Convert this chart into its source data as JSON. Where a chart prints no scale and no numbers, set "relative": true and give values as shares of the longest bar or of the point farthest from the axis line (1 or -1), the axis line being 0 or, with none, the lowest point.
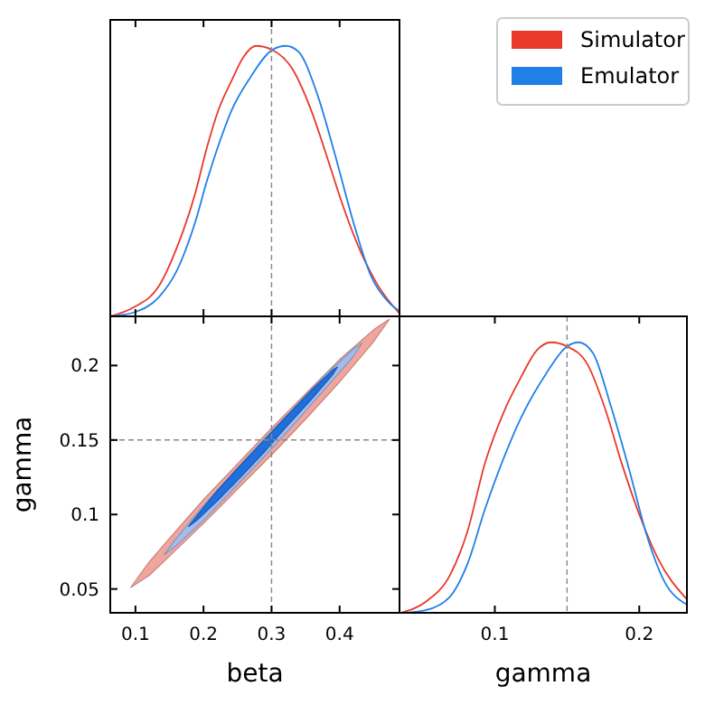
{
  "chart_data": [
    {
      "type": "line",
      "relative": true,
      "xlim": [
        0.063,
        0.488
      ],
      "xticks": [
        {
          "value": 0.1,
          "label": null
        },
        {
          "value": 0.2,
          "label": null
        },
        {
          "value": 0.3,
          "label": null
        },
        {
          "value": 0.4,
          "label": null
        }
      ],
      "tick_labels": false,
      "legend": "right",
      "grid": false,
      "ref_lines": [
        {
          "axis": "x",
          "value": 0.3,
          "color": "#888888",
          "line_style": "dashed"
        }
      ],
      "series": [
        {
          "name": "Simulator",
          "color": "#e8392b",
          "x": [
            0.063,
            0.098,
            0.134,
            0.161,
            0.188,
            0.205,
            0.223,
            0.241,
            0.259,
            0.277,
            0.301,
            0.33,
            0.357,
            0.384,
            0.402,
            0.429,
            0.455,
            0.488
          ],
          "values": [
            0,
            0.034,
            0.11,
            0.255,
            0.456,
            0.624,
            0.77,
            0.87,
            0.96,
            1.0,
            0.985,
            0.917,
            0.77,
            0.57,
            0.43,
            0.25,
            0.12,
            0.01
          ]
        },
        {
          "name": "Emulator",
          "color": "#2180e8",
          "x": [
            0.063,
            0.098,
            0.134,
            0.161,
            0.188,
            0.205,
            0.223,
            0.241,
            0.268,
            0.301,
            0.321,
            0.339,
            0.366,
            0.393,
            0.42,
            0.446,
            0.473,
            0.488
          ],
          "values": [
            0,
            0.015,
            0.07,
            0.17,
            0.35,
            0.5,
            0.64,
            0.76,
            0.88,
            0.985,
            1.0,
            0.98,
            0.83,
            0.6,
            0.35,
            0.15,
            0.05,
            0.02
          ]
        }
      ]
    },
    {
      "type": "area",
      "xlabel": "beta",
      "ylabel": "gamma",
      "xlim": [
        0.063,
        0.488
      ],
      "ylim": [
        0.034,
        0.233
      ],
      "xticks": [
        0.1,
        0.2,
        0.3,
        0.4
      ],
      "yticks": [
        0.05,
        0.1,
        0.15,
        0.2
      ],
      "grid": false,
      "ref_lines": [
        {
          "axis": "x",
          "value": 0.3,
          "color": "#888888",
          "line_style": "dashed"
        },
        {
          "axis": "y",
          "value": 0.15,
          "color": "#888888",
          "line_style": "dashed"
        }
      ],
      "series": [
        {
          "color": "#f2a59c",
          "x": [
            0.093,
            0.12,
            0.15,
            0.2,
            0.25,
            0.3,
            0.35,
            0.4,
            0.45,
            0.473,
            0.45,
            0.4,
            0.35,
            0.3,
            0.25,
            0.2,
            0.15,
            0.12
          ],
          "values": [
            0.051,
            0.068,
            0.084,
            0.11,
            0.134,
            0.158,
            0.181,
            0.204,
            0.224,
            0.231,
            0.216,
            0.189,
            0.164,
            0.14,
            0.117,
            0.094,
            0.072,
            0.059
          ]
        },
        {
          "color": "#a3bcec",
          "x": [
            0.142,
            0.16,
            0.2,
            0.25,
            0.2875,
            0.33,
            0.38,
            0.42,
            0.433,
            0.42,
            0.38,
            0.33,
            0.2875,
            0.25,
            0.2,
            0.16
          ],
          "values": [
            0.073,
            0.084,
            0.106,
            0.131,
            0.15,
            0.17,
            0.194,
            0.211,
            0.215,
            0.206,
            0.185,
            0.159,
            0.138,
            0.12,
            0.096,
            0.079
          ]
        },
        {
          "color": "#1f6fdc",
          "x": [
            0.178,
            0.19,
            0.22,
            0.25,
            0.2875,
            0.32,
            0.36,
            0.39,
            0.397,
            0.39,
            0.36,
            0.32,
            0.2875,
            0.25,
            0.22,
            0.19
          ],
          "values": [
            0.092,
            0.099,
            0.116,
            0.131,
            0.149,
            0.165,
            0.184,
            0.197,
            0.199,
            0.194,
            0.178,
            0.158,
            0.141,
            0.123,
            0.109,
            0.096
          ]
        }
      ]
    },
    {
      "type": "line",
      "relative": true,
      "xlabel": "gamma",
      "xlim": [
        0.034,
        0.233
      ],
      "xticks": [
        0.1,
        0.2
      ],
      "tick_labels": "x",
      "grid": false,
      "ref_lines": [
        {
          "axis": "x",
          "value": 0.15,
          "color": "#888888",
          "line_style": "dashed"
        }
      ],
      "series": [
        {
          "color": "#e8392b",
          "x": [
            0.035,
            0.052,
            0.069,
            0.081,
            0.093,
            0.106,
            0.118,
            0.129,
            0.139,
            0.15,
            0.164,
            0.176,
            0.188,
            0.201,
            0.213,
            0.233
          ],
          "values": [
            0,
            0.04,
            0.14,
            0.3,
            0.55,
            0.74,
            0.87,
            0.97,
            1.0,
            0.985,
            0.92,
            0.76,
            0.55,
            0.35,
            0.2,
            0.05
          ]
        },
        {
          "color": "#2180e8",
          "x": [
            0.035,
            0.052,
            0.069,
            0.081,
            0.093,
            0.106,
            0.118,
            0.135,
            0.15,
            0.158,
            0.168,
            0.18,
            0.193,
            0.205,
            0.217,
            0.233
          ],
          "values": [
            0,
            0.01,
            0.06,
            0.18,
            0.38,
            0.57,
            0.72,
            0.88,
            0.985,
            1.0,
            0.96,
            0.77,
            0.53,
            0.29,
            0.12,
            0.03
          ]
        }
      ]
    }
  ]
}
